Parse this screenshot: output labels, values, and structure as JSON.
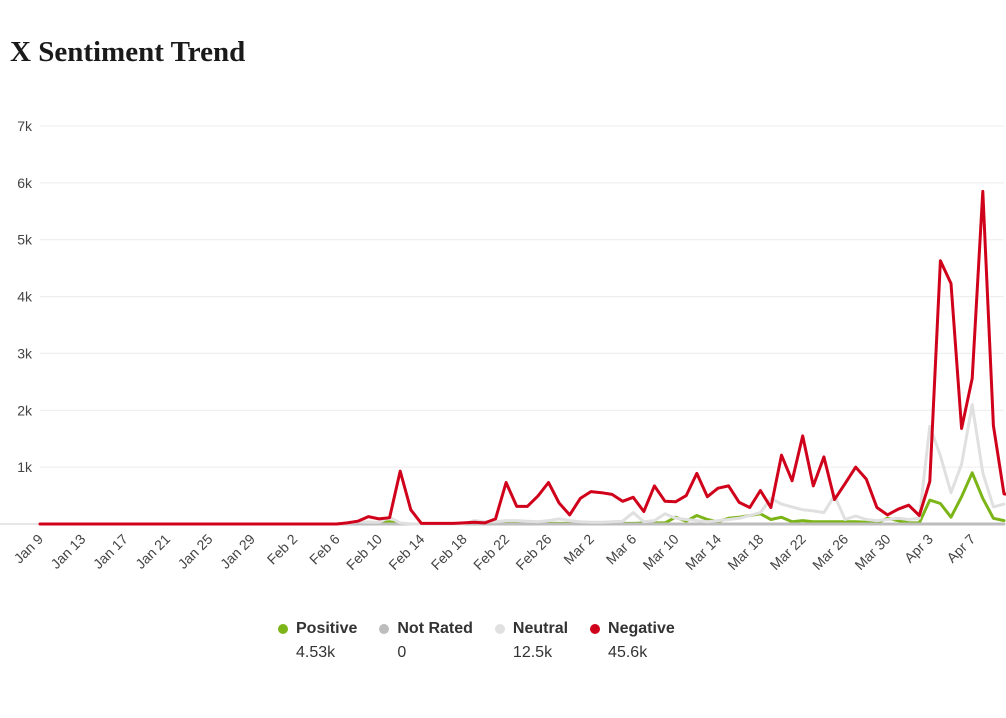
{
  "title": "X Sentiment Trend",
  "colors": {
    "positive": "#7cb518",
    "not_rated": "#bdbdbd",
    "neutral": "#e0e0e0",
    "negative": "#d0021b"
  },
  "legend": [
    {
      "name": "Positive",
      "total": "4.53k",
      "color": "#7cb518"
    },
    {
      "name": "Not Rated",
      "total": "0",
      "color": "#bdbdbd"
    },
    {
      "name": "Neutral",
      "total": "12.5k",
      "color": "#e0e0e0"
    },
    {
      "name": "Negative",
      "total": "45.6k",
      "color": "#d0021b"
    }
  ],
  "chart_data": {
    "type": "line",
    "title": "X Sentiment Trend",
    "xlabel": "",
    "ylabel": "",
    "ylim": [
      0,
      7000
    ],
    "yticks": [
      "1k",
      "2k",
      "3k",
      "4k",
      "5k",
      "6k",
      "7k"
    ],
    "ytick_values": [
      1000,
      2000,
      3000,
      4000,
      5000,
      6000,
      7000
    ],
    "x_tick_labels": [
      "Jan 9",
      "Jan 13",
      "Jan 17",
      "Jan 21",
      "Jan 25",
      "Jan 29",
      "Feb 2",
      "Feb 6",
      "Feb 10",
      "Feb 14",
      "Feb 18",
      "Feb 22",
      "Feb 26",
      "Mar 2",
      "Mar 6",
      "Mar 10",
      "Mar 14",
      "Mar 18",
      "Mar 22",
      "Mar 26",
      "Mar 30",
      "Apr 3",
      "Apr 7"
    ],
    "x_start": "Jan 9",
    "x_end": "Apr 8",
    "grid": true,
    "legend_position": "bottom",
    "series": [
      {
        "name": "Positive",
        "color": "#7cb518",
        "values": [
          0,
          0,
          0,
          0,
          0,
          0,
          0,
          0,
          0,
          0,
          0,
          0,
          0,
          0,
          0,
          0,
          0,
          0,
          0,
          0,
          0,
          0,
          0,
          0,
          0,
          0,
          0,
          0,
          0,
          10,
          20,
          30,
          20,
          40,
          0,
          0,
          0,
          0,
          0,
          0,
          0,
          0,
          0,
          10,
          10,
          10,
          10,
          10,
          10,
          10,
          10,
          10,
          10,
          10,
          10,
          10,
          10,
          20,
          20,
          20,
          120,
          50,
          150,
          80,
          40,
          100,
          120,
          150,
          180,
          80,
          120,
          40,
          60,
          40,
          40,
          40,
          40,
          40,
          30,
          20,
          100,
          60,
          20,
          20,
          420,
          360,
          120,
          480,
          900,
          450,
          100,
          60
        ]
      },
      {
        "name": "Not Rated",
        "color": "#bdbdbd",
        "values": [
          0,
          0,
          0,
          0,
          0,
          0,
          0,
          0,
          0,
          0,
          0,
          0,
          0,
          0,
          0,
          0,
          0,
          0,
          0,
          0,
          0,
          0,
          0,
          0,
          0,
          0,
          0,
          0,
          0,
          0,
          0,
          0,
          0,
          0,
          0,
          0,
          0,
          0,
          0,
          0,
          0,
          0,
          0,
          0,
          0,
          0,
          0,
          0,
          0,
          0,
          0,
          0,
          0,
          0,
          0,
          0,
          0,
          0,
          0,
          0,
          0,
          0,
          0,
          0,
          0,
          0,
          0,
          0,
          0,
          0,
          0,
          0,
          0,
          0,
          0,
          0,
          0,
          0,
          0,
          0,
          0,
          0,
          0,
          0,
          0,
          0,
          0,
          0,
          0,
          0,
          0,
          0
        ]
      },
      {
        "name": "Neutral",
        "color": "#e0e0e0",
        "values": [
          0,
          0,
          0,
          0,
          0,
          0,
          0,
          0,
          0,
          0,
          0,
          0,
          0,
          0,
          0,
          0,
          0,
          0,
          0,
          0,
          0,
          0,
          0,
          0,
          0,
          0,
          0,
          0,
          0,
          10,
          40,
          30,
          30,
          120,
          20,
          0,
          0,
          0,
          0,
          0,
          0,
          60,
          40,
          40,
          60,
          60,
          50,
          40,
          60,
          90,
          60,
          40,
          30,
          30,
          40,
          50,
          200,
          40,
          60,
          180,
          100,
          80,
          60,
          40,
          60,
          80,
          100,
          150,
          200,
          450,
          350,
          300,
          250,
          230,
          200,
          500,
          80,
          140,
          80,
          60,
          80,
          100,
          80,
          100,
          1720,
          1200,
          550,
          1050,
          2100,
          900,
          300,
          350
        ]
      },
      {
        "name": "Negative",
        "color": "#d0021b",
        "values": [
          0,
          0,
          0,
          0,
          0,
          0,
          0,
          0,
          0,
          0,
          0,
          0,
          0,
          0,
          0,
          0,
          0,
          0,
          0,
          0,
          0,
          0,
          0,
          0,
          0,
          0,
          0,
          0,
          0,
          20,
          50,
          130,
          90,
          110,
          930,
          250,
          10,
          10,
          10,
          10,
          20,
          30,
          20,
          90,
          730,
          310,
          310,
          490,
          730,
          370,
          160,
          450,
          570,
          550,
          520,
          400,
          470,
          220,
          670,
          400,
          390,
          500,
          890,
          480,
          630,
          670,
          380,
          290,
          590,
          290,
          1210,
          760,
          1550,
          670,
          1180,
          430,
          710,
          1000,
          790,
          290,
          160,
          260,
          330,
          150,
          750,
          4630,
          4230,
          1680,
          2560,
          5850,
          1730,
          530,
          510
        ]
      }
    ]
  }
}
